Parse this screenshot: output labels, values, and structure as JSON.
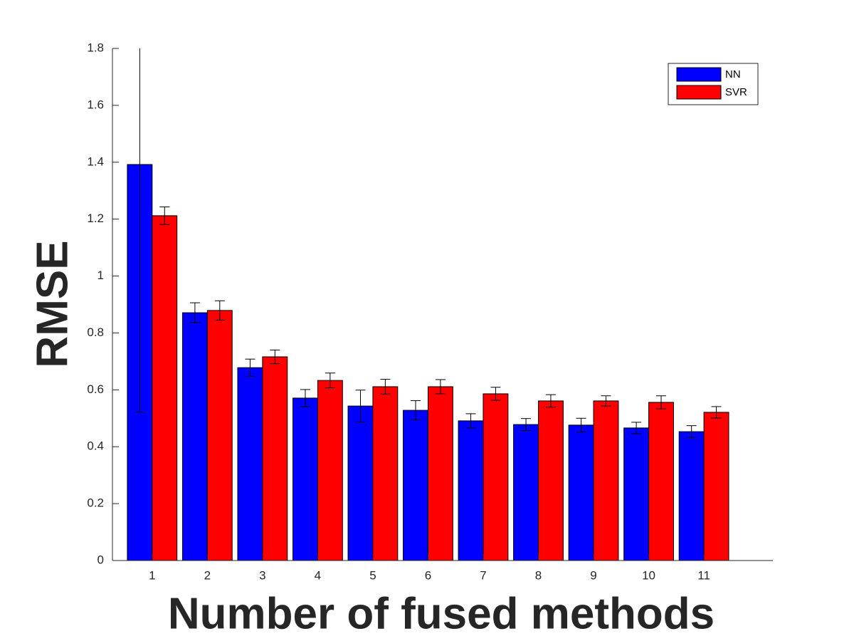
{
  "chart_data": {
    "type": "bar",
    "x_label": "Number of fused methods",
    "y_label": "RMSE",
    "x": [
      1,
      2,
      3,
      4,
      5,
      6,
      7,
      8,
      9,
      10,
      11
    ],
    "xlim": [
      0.28,
      12.25
    ],
    "xticks": [
      1,
      2,
      3,
      4,
      5,
      6,
      7,
      8,
      9,
      10,
      11
    ],
    "ylim": [
      0,
      1.8
    ],
    "yticks": [
      0,
      0.2,
      0.4,
      0.6,
      0.8,
      1,
      1.2,
      1.4,
      1.6,
      1.8
    ],
    "legend": "upper right",
    "series": [
      {
        "name": "NN",
        "color": "#0000ff",
        "values": [
          1.392,
          0.871,
          0.678,
          0.571,
          0.543,
          0.528,
          0.491,
          0.478,
          0.476,
          0.466,
          0.453
        ],
        "errors": [
          0.87,
          0.035,
          0.03,
          0.03,
          0.056,
          0.034,
          0.025,
          0.021,
          0.024,
          0.02,
          0.021
        ]
      },
      {
        "name": "SVR",
        "color": "#ff0000",
        "values": [
          1.212,
          0.879,
          0.716,
          0.633,
          0.611,
          0.611,
          0.586,
          0.561,
          0.561,
          0.556,
          0.521
        ],
        "errors": [
          0.031,
          0.034,
          0.024,
          0.026,
          0.026,
          0.025,
          0.023,
          0.022,
          0.018,
          0.023,
          0.02
        ]
      }
    ]
  }
}
